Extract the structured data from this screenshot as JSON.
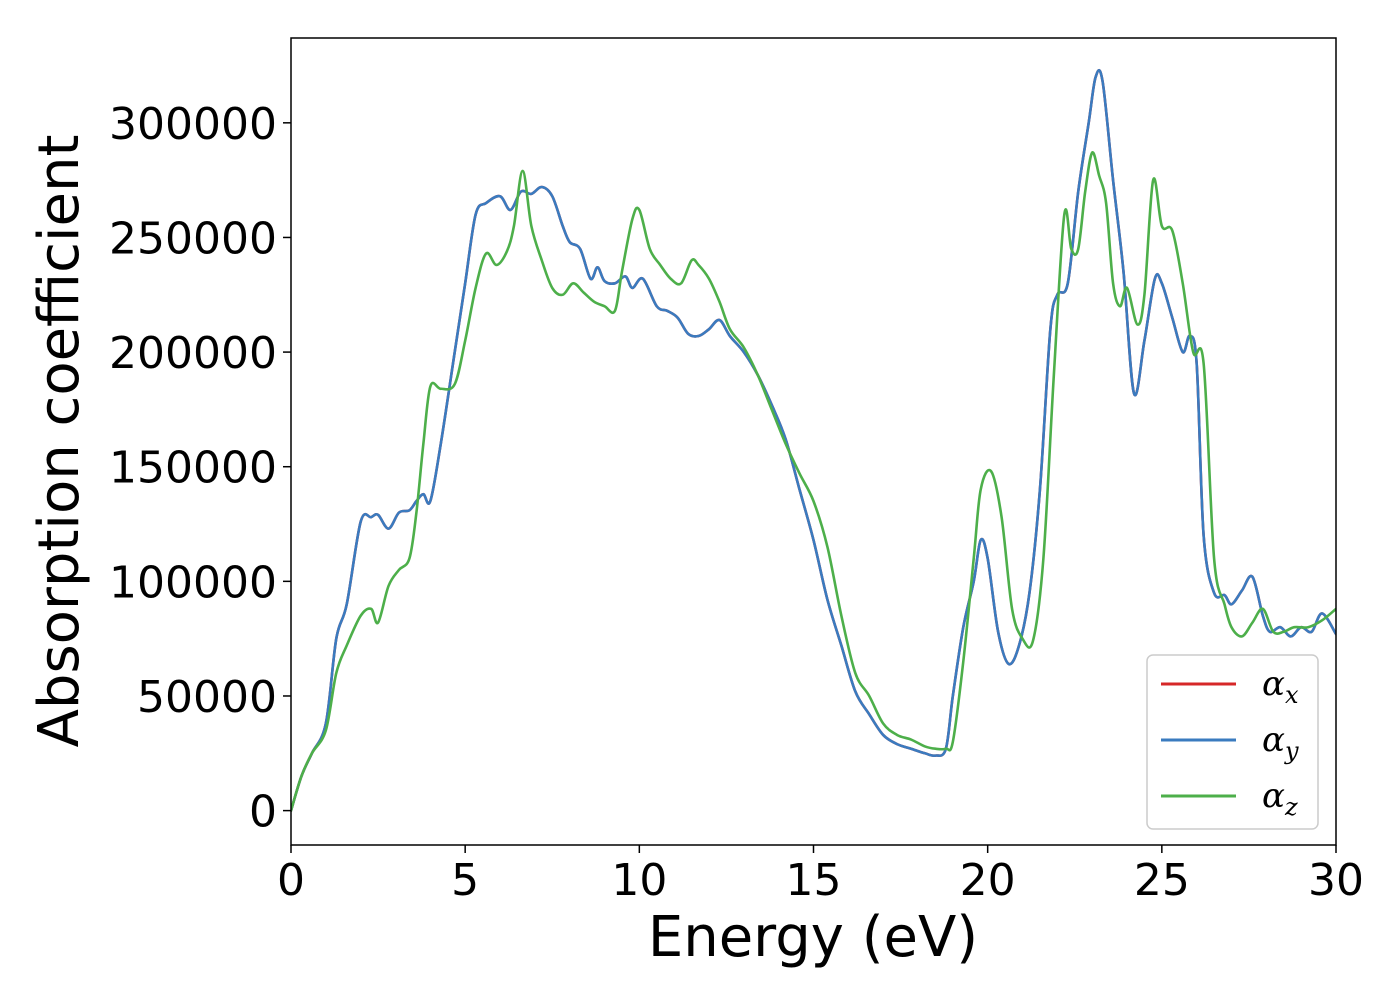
{
  "chart_data": {
    "type": "line",
    "xlabel": "Energy (eV)",
    "ylabel": "Absorption coefficient",
    "xlim": [
      0,
      30
    ],
    "ylim": [
      -15000,
      337000
    ],
    "xticks": [
      0,
      5,
      10,
      15,
      20,
      25,
      30
    ],
    "xtick_labels": [
      "0",
      "5",
      "10",
      "15",
      "20",
      "25",
      "30"
    ],
    "yticks": [
      0,
      50000,
      100000,
      150000,
      200000,
      250000,
      300000
    ],
    "ytick_labels": [
      "0",
      "50000",
      "100000",
      "150000",
      "200000",
      "250000",
      "300000"
    ],
    "grid": false,
    "legend_position": "lower-right",
    "colors": {
      "alpha_x": "#d62728",
      "alpha_y": "#3a7bbf",
      "alpha_z": "#4daf4a"
    },
    "series": [
      {
        "name": "α_x",
        "legend_base": "α",
        "legend_sub": "x",
        "color": "#d62728",
        "x": [
          0,
          0.3,
          0.6,
          1.0,
          1.3,
          1.6,
          2.0,
          2.3,
          2.5,
          2.8,
          3.1,
          3.4,
          3.6,
          3.8,
          4.0,
          4.3,
          4.7,
          5.0,
          5.3,
          5.6,
          6.0,
          6.3,
          6.6,
          6.9,
          7.2,
          7.5,
          7.8,
          8.0,
          8.3,
          8.6,
          8.8,
          9.0,
          9.3,
          9.6,
          9.8,
          10.1,
          10.5,
          10.8,
          11.1,
          11.4,
          11.7,
          12.0,
          12.3,
          12.6,
          13.0,
          13.4,
          13.8,
          14.2,
          14.6,
          15.0,
          15.4,
          15.8,
          16.2,
          16.6,
          17.0,
          17.4,
          17.8,
          18.2,
          18.5,
          18.8,
          19.0,
          19.3,
          19.6,
          19.8,
          20.0,
          20.3,
          20.6,
          20.9,
          21.2,
          21.5,
          21.8,
          22.0,
          22.3,
          22.6,
          22.9,
          23.1,
          23.3,
          23.6,
          23.9,
          24.2,
          24.5,
          24.8,
          25.0,
          25.3,
          25.6,
          25.8,
          26.0,
          26.2,
          26.5,
          26.8,
          27.0,
          27.3,
          27.6,
          27.9,
          28.1,
          28.4,
          28.7,
          29.0,
          29.3,
          29.6,
          30.0
        ],
        "y": [
          0,
          15000,
          25000,
          38000,
          75000,
          90000,
          126000,
          128000,
          129000,
          123000,
          130000,
          131000,
          135000,
          138000,
          135000,
          160000,
          200000,
          230000,
          260000,
          265000,
          268000,
          262000,
          270000,
          269000,
          272000,
          268000,
          255000,
          248000,
          245000,
          232000,
          237000,
          231000,
          230000,
          233000,
          228000,
          232000,
          220000,
          218000,
          215000,
          208000,
          207000,
          210000,
          214000,
          207000,
          200000,
          190000,
          177000,
          162000,
          140000,
          118000,
          92000,
          72000,
          52000,
          42000,
          33000,
          29000,
          27000,
          25000,
          24000,
          27000,
          50000,
          80000,
          100000,
          118000,
          110000,
          78000,
          64000,
          72000,
          95000,
          140000,
          210000,
          225000,
          230000,
          270000,
          300000,
          320000,
          318000,
          275000,
          235000,
          182000,
          205000,
          232000,
          230000,
          215000,
          200000,
          207000,
          195000,
          120000,
          95000,
          94000,
          90000,
          96000,
          102000,
          85000,
          78000,
          80000,
          76000,
          80000,
          78000,
          86000,
          77000
        ]
      },
      {
        "name": "α_y",
        "legend_base": "α",
        "legend_sub": "y",
        "color": "#3a7bbf",
        "x": [
          0,
          0.3,
          0.6,
          1.0,
          1.3,
          1.6,
          2.0,
          2.3,
          2.5,
          2.8,
          3.1,
          3.4,
          3.6,
          3.8,
          4.0,
          4.3,
          4.7,
          5.0,
          5.3,
          5.6,
          6.0,
          6.3,
          6.6,
          6.9,
          7.2,
          7.5,
          7.8,
          8.0,
          8.3,
          8.6,
          8.8,
          9.0,
          9.3,
          9.6,
          9.8,
          10.1,
          10.5,
          10.8,
          11.1,
          11.4,
          11.7,
          12.0,
          12.3,
          12.6,
          13.0,
          13.4,
          13.8,
          14.2,
          14.6,
          15.0,
          15.4,
          15.8,
          16.2,
          16.6,
          17.0,
          17.4,
          17.8,
          18.2,
          18.5,
          18.8,
          19.0,
          19.3,
          19.6,
          19.8,
          20.0,
          20.3,
          20.6,
          20.9,
          21.2,
          21.5,
          21.8,
          22.0,
          22.3,
          22.6,
          22.9,
          23.1,
          23.3,
          23.6,
          23.9,
          24.2,
          24.5,
          24.8,
          25.0,
          25.3,
          25.6,
          25.8,
          26.0,
          26.2,
          26.5,
          26.8,
          27.0,
          27.3,
          27.6,
          27.9,
          28.1,
          28.4,
          28.7,
          29.0,
          29.3,
          29.6,
          30.0
        ],
        "y": [
          0,
          15000,
          25000,
          38000,
          75000,
          90000,
          126000,
          128000,
          129000,
          123000,
          130000,
          131000,
          135000,
          138000,
          135000,
          160000,
          200000,
          230000,
          260000,
          265000,
          268000,
          262000,
          270000,
          269000,
          272000,
          268000,
          255000,
          248000,
          245000,
          232000,
          237000,
          231000,
          230000,
          233000,
          228000,
          232000,
          220000,
          218000,
          215000,
          208000,
          207000,
          210000,
          214000,
          207000,
          200000,
          190000,
          177000,
          162000,
          140000,
          118000,
          92000,
          72000,
          52000,
          42000,
          33000,
          29000,
          27000,
          25000,
          24000,
          27000,
          50000,
          80000,
          100000,
          118000,
          110000,
          78000,
          64000,
          72000,
          95000,
          140000,
          210000,
          225000,
          230000,
          270000,
          300000,
          320000,
          318000,
          275000,
          235000,
          182000,
          205000,
          232000,
          230000,
          215000,
          200000,
          207000,
          195000,
          120000,
          95000,
          94000,
          90000,
          96000,
          102000,
          85000,
          78000,
          80000,
          76000,
          80000,
          78000,
          86000,
          77000
        ]
      },
      {
        "name": "α_z",
        "legend_base": "α",
        "legend_sub": "z",
        "color": "#4daf4a",
        "x": [
          0,
          0.3,
          0.6,
          1.0,
          1.3,
          1.6,
          2.0,
          2.3,
          2.5,
          2.8,
          3.1,
          3.4,
          3.6,
          3.8,
          4.0,
          4.3,
          4.7,
          5.0,
          5.3,
          5.6,
          5.9,
          6.2,
          6.4,
          6.65,
          6.9,
          7.2,
          7.5,
          7.8,
          8.1,
          8.4,
          8.7,
          9.0,
          9.3,
          9.5,
          9.8,
          10.0,
          10.3,
          10.6,
          10.9,
          11.2,
          11.5,
          11.7,
          12.0,
          12.3,
          12.6,
          13.0,
          13.4,
          13.8,
          14.2,
          14.6,
          15.0,
          15.4,
          15.8,
          16.2,
          16.6,
          17.0,
          17.4,
          17.8,
          18.2,
          18.5,
          18.8,
          19.0,
          19.3,
          19.6,
          19.8,
          20.1,
          20.4,
          20.7,
          21.0,
          21.3,
          21.6,
          21.9,
          22.2,
          22.4,
          22.6,
          22.8,
          23.0,
          23.2,
          23.4,
          23.6,
          23.8,
          24.0,
          24.3,
          24.5,
          24.75,
          25.0,
          25.3,
          25.6,
          25.9,
          26.2,
          26.5,
          26.8,
          27.0,
          27.3,
          27.6,
          27.9,
          28.2,
          28.5,
          28.8,
          29.2,
          29.6,
          30.0
        ],
        "y": [
          0,
          15000,
          25000,
          35000,
          60000,
          72000,
          85000,
          88000,
          82000,
          98000,
          105000,
          110000,
          130000,
          160000,
          185000,
          184000,
          186000,
          205000,
          228000,
          243000,
          238000,
          244000,
          255000,
          279000,
          255000,
          240000,
          228000,
          225000,
          230000,
          226000,
          222000,
          220000,
          218000,
          235000,
          258000,
          262000,
          245000,
          238000,
          232000,
          230000,
          240000,
          238000,
          232000,
          222000,
          210000,
          202000,
          190000,
          175000,
          160000,
          147000,
          135000,
          115000,
          85000,
          60000,
          50000,
          38000,
          33000,
          31000,
          28000,
          27000,
          27000,
          30000,
          65000,
          110000,
          140000,
          148000,
          128000,
          88000,
          75000,
          74000,
          110000,
          190000,
          260000,
          245000,
          245000,
          270000,
          287000,
          277000,
          265000,
          230000,
          220000,
          228000,
          212000,
          225000,
          275000,
          255000,
          253000,
          230000,
          200000,
          195000,
          110000,
          90000,
          80000,
          76000,
          82000,
          88000,
          78000,
          78000,
          80000,
          80000,
          83000,
          88000
        ]
      }
    ]
  }
}
